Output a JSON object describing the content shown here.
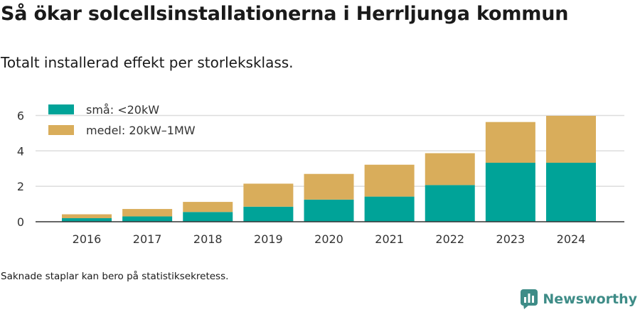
{
  "title": "Så ökar solcellsinstallationerna i Herrljunga kommun",
  "subtitle": "Totalt installerad effekt per storleksklass.",
  "footnote": "Saknade staplar kan bero på statistiksekretess.",
  "brand": {
    "name": "Newsworthy",
    "icon": "newsworthy-logo-icon",
    "color": "#3e8c87"
  },
  "chart_data": {
    "type": "bar",
    "stacked": true,
    "categories": [
      "2016",
      "2017",
      "2018",
      "2019",
      "2020",
      "2021",
      "2022",
      "2023",
      "2024"
    ],
    "series": [
      {
        "name": "små: <20kW",
        "color": "#00a398",
        "values": [
          0.2,
          0.3,
          0.55,
          0.85,
          1.25,
          1.42,
          2.07,
          3.33,
          3.33
        ]
      },
      {
        "name": "medel: 20kW–1MW",
        "color": "#d9ad5b",
        "values": [
          0.22,
          0.42,
          0.57,
          1.3,
          1.45,
          1.8,
          1.8,
          2.3,
          2.65
        ]
      }
    ],
    "yticks": [
      0,
      2,
      4,
      6
    ],
    "ylim": [
      0,
      6.5
    ],
    "grid": true,
    "legend": "top-left"
  }
}
